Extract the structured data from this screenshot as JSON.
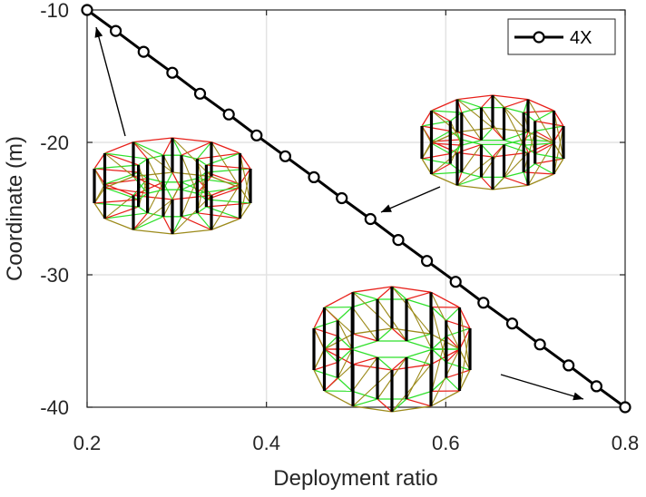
{
  "chart_data": {
    "type": "line",
    "xlabel": "Deployment ratio",
    "ylabel": "Coordinate (m)",
    "xlim": [
      0.2,
      0.8
    ],
    "ylim": [
      -40,
      -10
    ],
    "xticks": [
      "0.2",
      "0.4",
      "0.6",
      "0.8"
    ],
    "xtick_values": [
      0.2,
      0.4,
      0.6,
      0.8
    ],
    "yticks": [
      "-10",
      "-20",
      "-30",
      "-40"
    ],
    "ytick_values": [
      -10,
      -20,
      -30,
      -40
    ],
    "grid": true,
    "legend_position": "top-right",
    "series": [
      {
        "name": "4X",
        "color": "#000000",
        "marker": "circle",
        "x": [
          0.2,
          0.232,
          0.263,
          0.295,
          0.326,
          0.358,
          0.389,
          0.421,
          0.453,
          0.484,
          0.516,
          0.547,
          0.579,
          0.611,
          0.642,
          0.674,
          0.705,
          0.737,
          0.768,
          0.8
        ],
        "y": [
          -10,
          -11.58,
          -13.16,
          -14.74,
          -16.32,
          -17.89,
          -19.47,
          -21.05,
          -22.63,
          -24.21,
          -25.79,
          -27.37,
          -28.95,
          -30.53,
          -32.11,
          -33.68,
          -35.26,
          -36.84,
          -38.42,
          -40
        ]
      }
    ],
    "colors": {
      "strut": "#000000",
      "cable_red": "#e8201a",
      "cable_green": "#2ee02a",
      "cable_olive": "#9c8a1a",
      "grid": "#e3e3e3"
    }
  }
}
